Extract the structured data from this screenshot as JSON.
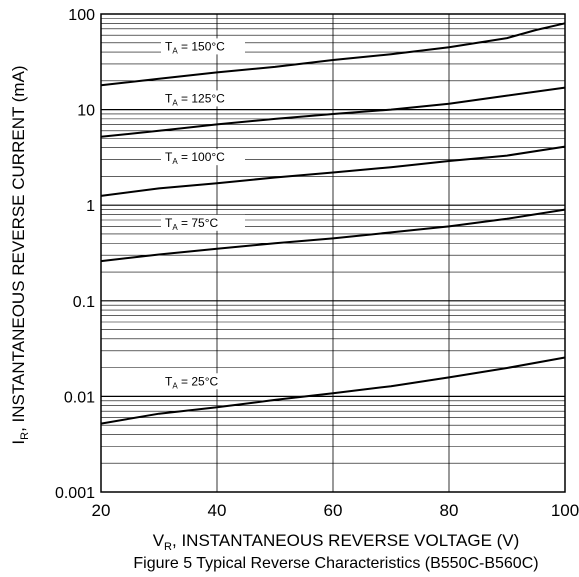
{
  "caption": "Figure 5 Typical Reverse Characteristics (B550C-B560C)",
  "chart_data": {
    "type": "line",
    "title": "",
    "xlabel_main": "V",
    "xlabel_sub": "R",
    "xlabel_rest": ", INSTANTANEOUS REVERSE VOLTAGE (V)",
    "ylabel_main": "I",
    "ylabel_sub": "R",
    "ylabel_rest": ", INSTANTANEOUS REVERSE CURRENT (mA)",
    "x_scale": "linear",
    "y_scale": "log",
    "xlim": [
      20,
      100
    ],
    "ylim": [
      0.001,
      100
    ],
    "x_ticks": [
      "20",
      "40",
      "60",
      "80",
      "100"
    ],
    "y_ticks": [
      "0.001",
      "0.01",
      "0.1",
      "1",
      "10",
      "100"
    ],
    "grid": true,
    "legend": "none",
    "series": [
      {
        "name_main": "T",
        "name_sub": "A",
        "name_rest": " = 150°C",
        "x": [
          20,
          30,
          40,
          50,
          60,
          70,
          80,
          90,
          95,
          100
        ],
        "values": [
          18,
          21,
          24.5,
          28,
          33,
          38,
          45,
          56,
          68,
          80
        ]
      },
      {
        "name_main": "T",
        "name_sub": "A",
        "name_rest": " = 125°C",
        "x": [
          20,
          30,
          40,
          50,
          60,
          70,
          80,
          90,
          100
        ],
        "values": [
          5.2,
          6,
          7,
          8,
          9,
          10,
          11.5,
          14,
          17
        ]
      },
      {
        "name_main": "T",
        "name_sub": "A",
        "name_rest": " = 100°C",
        "x": [
          20,
          30,
          40,
          50,
          60,
          70,
          80,
          90,
          100
        ],
        "values": [
          1.25,
          1.5,
          1.7,
          1.95,
          2.2,
          2.5,
          2.9,
          3.3,
          4.1
        ]
      },
      {
        "name_main": "T",
        "name_sub": "A",
        "name_rest": " = 75°C",
        "x": [
          20,
          30,
          40,
          50,
          60,
          70,
          80,
          90,
          100
        ],
        "values": [
          0.26,
          0.305,
          0.35,
          0.4,
          0.45,
          0.52,
          0.6,
          0.72,
          0.9
        ]
      },
      {
        "name_main": "T",
        "name_sub": "A",
        "name_rest": " = 25°C",
        "x": [
          20,
          30,
          40,
          50,
          60,
          70,
          80,
          90,
          100
        ],
        "values": [
          0.0052,
          0.0066,
          0.0077,
          0.0092,
          0.0108,
          0.0128,
          0.0158,
          0.0198,
          0.0255
        ]
      }
    ]
  }
}
